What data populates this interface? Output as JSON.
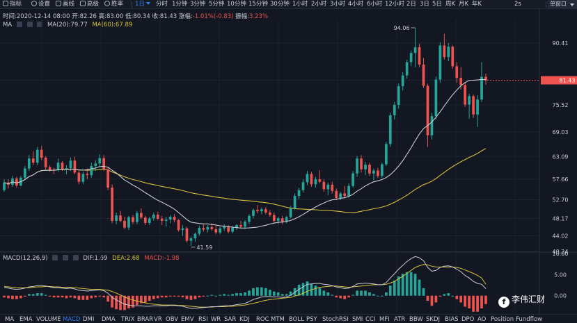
{
  "toolbar": {
    "indicators_label": "指标",
    "settings_label": "设置",
    "draw_label": "画线",
    "advanced_label": "高级",
    "winrate_label": "胜率",
    "periods": [
      "1日",
      "分时",
      "1分钟",
      "3分钟",
      "5分钟",
      "10分钟",
      "15分钟",
      "30分钟",
      "1小时",
      "2小时",
      "3小时",
      "4小时",
      "6小时",
      "12小时",
      "2日",
      "3日",
      "5日",
      "周K",
      "月K",
      "年K"
    ],
    "active_period": "1日",
    "refresh": "2s",
    "window_mode": "单窗口"
  },
  "info": {
    "time_label": "时间:",
    "time": "2020-12-14 08:00",
    "open_label": "开:",
    "open": "82.26",
    "high_label": "高:",
    "high": "83.00",
    "low_label": "低:",
    "low": "80.34",
    "close_label": "收:",
    "close": "81.43",
    "change_label": "涨幅:",
    "change": "-1.01%(-0.83)",
    "amplitude_label": "振幅:",
    "amplitude": "3.23%"
  },
  "ma_legend": {
    "name": "MA",
    "ma20": "MA(20):79.77",
    "ma60": "MA(60):67.89"
  },
  "macd_legend": {
    "name": "MACD(12,26,9)",
    "dif": "DIF:1.69",
    "dea": "DEA:2.68",
    "macd": "MACD:-1.98"
  },
  "price_axis": {
    "ticks": [
      "90.41",
      "81.43",
      "75.52",
      "69.03",
      "63.09",
      "57.66",
      "52.70",
      "48.17",
      "44.02",
      "40.24"
    ],
    "current_price": "81.43",
    "max_label": "94.06",
    "min_label": "41.59"
  },
  "macd_axis": {
    "ticks": [
      "10.00",
      "5.00",
      "0.00"
    ]
  },
  "indicators": [
    "MA",
    "EMA",
    "VOLUME",
    "MACD",
    "DMI",
    "DMA",
    "TRIX",
    "BRAR",
    "VR",
    "OBV",
    "EMV",
    "RSI",
    "WR",
    "SAR",
    "KDJ",
    "ROC",
    "MTM",
    "BOLL",
    "PSY",
    "StochRSI",
    "SMI",
    "CCI",
    "MFI",
    "ATR",
    "BBW",
    "SKDJ",
    "BIAS",
    "DPO",
    "AO",
    "Position",
    "Fundflow"
  ],
  "active_indicator": "MACD",
  "watermark": {
    "text": "李伟汇财",
    "logo_glyph": "f"
  },
  "colors": {
    "up": "#26a69a",
    "down": "#ef5350",
    "ma20": "#c9ccd4",
    "ma60": "#d4c23a",
    "accent": "#2f7ef0",
    "background": "#131722"
  },
  "chart_data": [
    {
      "type": "candlestick",
      "title": "",
      "ylim": [
        40.24,
        94.06
      ],
      "y_ticks": [
        90.41,
        81.43,
        75.52,
        69.03,
        63.09,
        57.66,
        52.7,
        48.17,
        44.02,
        40.24
      ],
      "annotations": [
        {
          "label": "94.06",
          "kind": "period-high"
        },
        {
          "label": "41.59",
          "kind": "period-low"
        }
      ],
      "ohlc": [
        [
          55.0,
          57.6,
          54.6,
          56.8
        ],
        [
          56.8,
          57.6,
          55.4,
          56.3
        ],
        [
          56.3,
          58.4,
          55.8,
          57.8
        ],
        [
          57.8,
          58.2,
          55.6,
          56.1
        ],
        [
          56.1,
          58.4,
          55.9,
          58.0
        ],
        [
          58.0,
          60.8,
          57.4,
          60.2
        ],
        [
          60.2,
          63.4,
          59.6,
          62.6
        ],
        [
          62.6,
          64.4,
          61.0,
          61.6
        ],
        [
          61.6,
          65.4,
          61.0,
          64.7
        ],
        [
          64.7,
          65.6,
          62.2,
          62.8
        ],
        [
          62.8,
          63.2,
          60.0,
          60.5
        ],
        [
          60.5,
          61.0,
          59.4,
          59.9
        ],
        [
          59.9,
          60.4,
          58.8,
          59.8
        ],
        [
          59.8,
          62.6,
          59.4,
          61.6
        ],
        [
          61.6,
          62.0,
          59.6,
          60.1
        ],
        [
          60.1,
          61.0,
          58.8,
          60.3
        ],
        [
          60.3,
          62.8,
          59.6,
          62.1
        ],
        [
          62.1,
          63.0,
          58.8,
          59.2
        ],
        [
          59.2,
          59.8,
          56.4,
          57.0
        ],
        [
          57.0,
          59.4,
          56.4,
          58.9
        ],
        [
          58.9,
          60.2,
          57.6,
          58.6
        ],
        [
          58.6,
          61.6,
          58.0,
          60.8
        ],
        [
          60.8,
          62.2,
          59.6,
          61.4
        ],
        [
          61.4,
          63.6,
          60.6,
          62.7
        ],
        [
          62.7,
          63.4,
          59.6,
          60.0
        ],
        [
          60.0,
          60.6,
          55.0,
          55.6
        ],
        [
          55.6,
          56.4,
          47.0,
          47.6
        ],
        [
          47.6,
          49.6,
          46.8,
          48.9
        ],
        [
          48.9,
          50.0,
          47.2,
          47.6
        ],
        [
          47.6,
          48.6,
          45.6,
          46.0
        ],
        [
          46.0,
          48.8,
          45.4,
          48.5
        ],
        [
          48.5,
          49.0,
          46.8,
          47.3
        ],
        [
          47.3,
          50.0,
          46.8,
          49.5
        ],
        [
          49.5,
          50.6,
          48.0,
          48.4
        ],
        [
          48.4,
          48.8,
          46.6,
          47.1
        ],
        [
          47.1,
          48.6,
          46.6,
          48.2
        ],
        [
          48.2,
          49.6,
          47.6,
          49.1
        ],
        [
          49.1,
          49.8,
          47.8,
          48.1
        ],
        [
          48.1,
          48.8,
          46.6,
          47.6
        ],
        [
          47.6,
          48.6,
          46.2,
          47.9
        ],
        [
          47.9,
          49.0,
          47.0,
          48.6
        ],
        [
          48.6,
          49.2,
          47.2,
          47.8
        ],
        [
          47.8,
          48.0,
          45.0,
          45.4
        ],
        [
          45.4,
          46.6,
          44.0,
          45.8
        ],
        [
          45.8,
          46.2,
          42.4,
          42.8
        ],
        [
          42.8,
          43.8,
          41.6,
          43.4
        ],
        [
          43.4,
          44.8,
          42.6,
          44.5
        ],
        [
          44.5,
          46.4,
          44.0,
          45.9
        ],
        [
          45.9,
          46.8,
          45.0,
          45.5
        ],
        [
          45.5,
          46.6,
          44.8,
          46.1
        ],
        [
          46.1,
          47.0,
          45.2,
          45.6
        ],
        [
          45.6,
          46.4,
          44.4,
          44.8
        ],
        [
          44.8,
          46.2,
          44.4,
          45.8
        ],
        [
          45.8,
          46.8,
          45.2,
          46.2
        ],
        [
          46.2,
          46.6,
          44.6,
          45.0
        ],
        [
          45.0,
          46.4,
          44.6,
          46.0
        ],
        [
          46.0,
          46.8,
          45.4,
          46.6
        ],
        [
          46.6,
          47.6,
          45.8,
          46.2
        ],
        [
          46.2,
          47.8,
          45.6,
          47.4
        ],
        [
          47.4,
          49.2,
          46.8,
          48.8
        ],
        [
          48.8,
          50.6,
          48.2,
          50.2
        ],
        [
          50.2,
          51.4,
          49.4,
          49.9
        ],
        [
          49.9,
          50.8,
          49.2,
          50.4
        ],
        [
          50.4,
          50.9,
          49.2,
          49.6
        ],
        [
          49.6,
          50.2,
          48.6,
          49.0
        ],
        [
          49.0,
          49.6,
          47.2,
          47.6
        ],
        [
          47.6,
          48.6,
          46.8,
          48.2
        ],
        [
          48.2,
          48.8,
          46.8,
          47.4
        ],
        [
          47.4,
          48.8,
          47.0,
          48.5
        ],
        [
          48.5,
          51.2,
          48.2,
          50.6
        ],
        [
          50.6,
          54.2,
          50.2,
          53.6
        ],
        [
          53.6,
          55.6,
          52.8,
          55.0
        ],
        [
          55.0,
          57.6,
          54.4,
          56.9
        ],
        [
          56.9,
          59.6,
          56.2,
          58.9
        ],
        [
          58.9,
          59.4,
          55.8,
          56.4
        ],
        [
          56.4,
          58.2,
          55.6,
          57.6
        ],
        [
          57.6,
          59.8,
          56.6,
          57.0
        ],
        [
          57.0,
          57.6,
          54.6,
          55.2
        ],
        [
          55.2,
          56.8,
          53.8,
          56.3
        ],
        [
          56.3,
          57.0,
          54.2,
          54.8
        ],
        [
          54.8,
          55.4,
          52.6,
          53.1
        ],
        [
          53.1,
          54.6,
          52.6,
          54.2
        ],
        [
          54.2,
          56.0,
          53.0,
          53.6
        ],
        [
          53.6,
          56.6,
          53.2,
          56.0
        ],
        [
          56.0,
          59.6,
          55.6,
          59.0
        ],
        [
          59.0,
          63.2,
          58.2,
          62.6
        ],
        [
          62.6,
          63.4,
          59.2,
          60.0
        ],
        [
          60.0,
          61.8,
          58.6,
          61.1
        ],
        [
          61.1,
          61.6,
          58.4,
          59.0
        ],
        [
          59.0,
          60.2,
          57.4,
          59.7
        ],
        [
          59.7,
          60.4,
          58.0,
          58.4
        ],
        [
          58.4,
          61.6,
          58.0,
          61.2
        ],
        [
          61.2,
          66.6,
          60.8,
          66.1
        ],
        [
          66.1,
          73.6,
          65.4,
          73.0
        ],
        [
          73.0,
          76.2,
          72.0,
          75.5
        ],
        [
          75.5,
          80.6,
          74.6,
          80.0
        ],
        [
          80.0,
          83.4,
          79.0,
          82.6
        ],
        [
          82.6,
          86.4,
          81.8,
          85.8
        ],
        [
          85.8,
          88.6,
          84.8,
          88.0
        ],
        [
          88.0,
          94.06,
          84.6,
          89.4
        ],
        [
          89.4,
          90.2,
          84.6,
          85.2
        ],
        [
          85.2,
          86.8,
          79.6,
          80.1
        ],
        [
          80.1,
          80.6,
          65.4,
          68.2
        ],
        [
          68.2,
          73.6,
          67.2,
          72.8
        ],
        [
          72.8,
          82.4,
          72.0,
          81.6
        ],
        [
          81.6,
          90.6,
          80.8,
          89.8
        ],
        [
          89.8,
          92.6,
          86.4,
          87.0
        ],
        [
          87.0,
          90.4,
          86.0,
          89.5
        ],
        [
          89.5,
          89.9,
          84.2,
          84.8
        ],
        [
          84.8,
          85.8,
          80.8,
          82.0
        ],
        [
          82.0,
          84.6,
          79.2,
          80.3
        ],
        [
          80.3,
          81.0,
          75.0,
          75.6
        ],
        [
          75.6,
          78.2,
          72.2,
          77.6
        ],
        [
          77.6,
          78.0,
          72.4,
          73.2
        ],
        [
          73.2,
          77.8,
          70.2,
          76.8
        ],
        [
          76.8,
          85.8,
          76.2,
          82.26
        ],
        [
          82.26,
          83.0,
          80.34,
          81.43
        ]
      ]
    },
    {
      "type": "bar",
      "title": "MACD(12,26,9)",
      "ylim": [
        -4.0,
        10.0
      ],
      "y_ticks": [
        10.0,
        5.0,
        0.0
      ],
      "series": [
        {
          "name": "DIF",
          "line": true,
          "values": [
            2.0,
            1.8,
            1.6,
            1.5,
            1.6,
            1.8,
            2.1,
            2.2,
            2.4,
            2.4,
            2.3,
            2.1,
            1.9,
            1.9,
            1.8,
            1.7,
            1.8,
            1.6,
            1.3,
            1.2,
            1.1,
            1.2,
            1.3,
            1.4,
            1.2,
            0.6,
            -0.4,
            -1.0,
            -1.5,
            -2.0,
            -2.2,
            -2.4,
            -2.4,
            -2.4,
            -2.5,
            -2.5,
            -2.4,
            -2.4,
            -2.4,
            -2.4,
            -2.3,
            -2.3,
            -2.4,
            -2.5,
            -2.8,
            -3.0,
            -3.0,
            -2.9,
            -2.8,
            -2.7,
            -2.6,
            -2.6,
            -2.5,
            -2.4,
            -2.4,
            -2.3,
            -2.1,
            -2.0,
            -1.8,
            -1.4,
            -0.9,
            -0.6,
            -0.3,
            -0.2,
            -0.2,
            -0.3,
            -0.3,
            -0.4,
            -0.3,
            0.1,
            0.8,
            1.5,
            2.1,
            2.7,
            2.8,
            2.9,
            2.9,
            2.7,
            2.6,
            2.4,
            2.1,
            1.9,
            1.7,
            1.8,
            2.2,
            2.8,
            2.9,
            3.0,
            2.9,
            2.8,
            2.6,
            2.6,
            3.1,
            4.2,
            5.2,
            6.3,
            7.2,
            8.1,
            8.8,
            9.3,
            9.0,
            8.3,
            6.7,
            5.8,
            6.0,
            6.7,
            7.0,
            7.1,
            6.8,
            6.3,
            5.7,
            4.8,
            4.2,
            3.4,
            2.9,
            2.7,
            1.69
          ]
        },
        {
          "name": "DEA",
          "line": true,
          "values": [
            2.2,
            2.1,
            2.0,
            1.9,
            1.9,
            1.9,
            1.9,
            2.0,
            2.1,
            2.1,
            2.2,
            2.2,
            2.1,
            2.1,
            2.0,
            2.0,
            2.0,
            1.9,
            1.8,
            1.7,
            1.6,
            1.5,
            1.5,
            1.5,
            1.4,
            1.3,
            1.0,
            0.6,
            0.2,
            -0.3,
            -0.7,
            -1.0,
            -1.3,
            -1.5,
            -1.7,
            -1.9,
            -2.0,
            -2.1,
            -2.2,
            -2.2,
            -2.2,
            -2.2,
            -2.3,
            -2.3,
            -2.4,
            -2.5,
            -2.6,
            -2.7,
            -2.7,
            -2.7,
            -2.7,
            -2.6,
            -2.6,
            -2.6,
            -2.5,
            -2.5,
            -2.4,
            -2.3,
            -2.2,
            -2.0,
            -1.8,
            -1.6,
            -1.3,
            -1.1,
            -0.9,
            -0.8,
            -0.7,
            -0.6,
            -0.5,
            -0.4,
            -0.1,
            0.2,
            0.6,
            1.0,
            1.4,
            1.7,
            2.0,
            2.1,
            2.2,
            2.3,
            2.3,
            2.2,
            2.1,
            2.0,
            2.1,
            2.2,
            2.3,
            2.4,
            2.5,
            2.6,
            2.6,
            2.6,
            2.7,
            3.0,
            3.4,
            4.0,
            4.6,
            5.3,
            6.0,
            6.7,
            7.1,
            7.4,
            7.3,
            7.0,
            6.8,
            6.8,
            6.8,
            6.8,
            6.8,
            6.7,
            6.5,
            6.1,
            5.7,
            5.3,
            4.8,
            4.2,
            2.68
          ]
        },
        {
          "name": "MACD",
          "values": [
            -0.4,
            -0.6,
            -0.8,
            -0.8,
            -0.6,
            -0.2,
            0.4,
            0.4,
            0.6,
            0.6,
            0.2,
            -0.2,
            -0.4,
            -0.4,
            -0.4,
            -0.6,
            -0.4,
            -0.6,
            -1.0,
            -1.0,
            -1.0,
            -0.6,
            -0.4,
            -0.2,
            -0.4,
            -1.4,
            -2.8,
            -3.2,
            -3.4,
            -3.4,
            -3.0,
            -2.8,
            -2.2,
            -1.8,
            -1.6,
            -1.2,
            -0.8,
            -0.6,
            -0.4,
            -0.4,
            -0.2,
            -0.2,
            -0.2,
            -0.4,
            -0.8,
            -1.0,
            -0.8,
            -0.4,
            -0.2,
            0.0,
            0.2,
            0.0,
            0.2,
            0.4,
            0.2,
            0.4,
            0.6,
            0.6,
            0.8,
            1.2,
            1.8,
            2.0,
            2.0,
            1.8,
            1.4,
            1.0,
            0.8,
            0.4,
            0.4,
            1.0,
            1.8,
            2.6,
            3.0,
            3.4,
            2.8,
            2.4,
            1.8,
            1.2,
            0.8,
            0.2,
            -0.4,
            -0.6,
            -0.8,
            -0.4,
            0.2,
            1.2,
            1.2,
            1.2,
            0.8,
            0.4,
            0.0,
            0.0,
            0.8,
            2.4,
            3.6,
            4.6,
            5.2,
            5.6,
            5.6,
            5.2,
            3.8,
            1.8,
            -1.2,
            -2.4,
            -1.6,
            -0.2,
            0.4,
            0.6,
            0.0,
            -0.8,
            -1.6,
            -2.6,
            -3.0,
            -3.8,
            -3.8,
            -3.0,
            -1.98
          ]
        }
      ]
    }
  ]
}
